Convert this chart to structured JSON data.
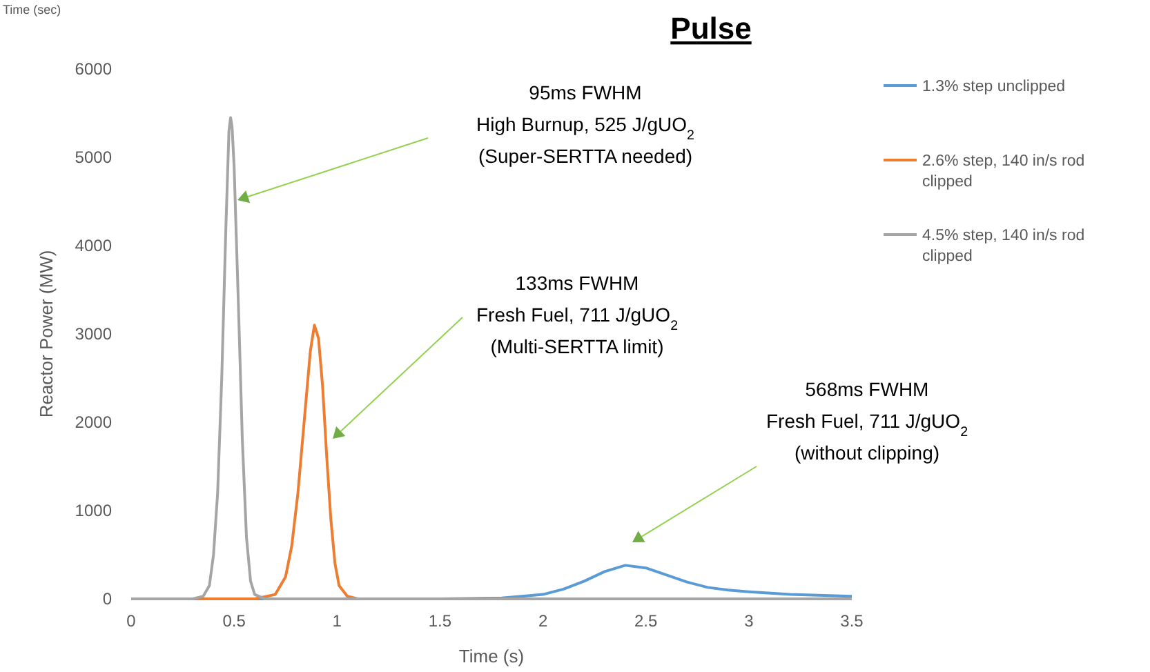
{
  "chart_data": {
    "type": "line",
    "title": "Pulse",
    "xlabel": "Time (s)",
    "ylabel": "Reactor Power (MW)",
    "xlim": [
      0,
      3.5
    ],
    "xticks": [
      0,
      0.5,
      1,
      1.5,
      2,
      2.5,
      3,
      3.5
    ],
    "ylim": [
      0,
      6000
    ],
    "yticks": [
      0,
      1000,
      2000,
      3000,
      4000,
      5000,
      6000
    ],
    "grid": false,
    "legend": "top right",
    "marker": "none",
    "line_style": "solid",
    "series": [
      {
        "name": "1.3% step unclipped",
        "color": "#5b9bd5",
        "x": [
          0,
          1.5,
          1.8,
          2.0,
          2.1,
          2.2,
          2.3,
          2.4,
          2.5,
          2.6,
          2.7,
          2.8,
          2.9,
          3.0,
          3.2,
          3.5
        ],
        "values": [
          0,
          0,
          10,
          50,
          110,
          200,
          310,
          380,
          350,
          270,
          190,
          130,
          100,
          80,
          50,
          30
        ]
      },
      {
        "name": "2.6% step, 140 in/s rod clipped",
        "color": "#ed7d31",
        "x": [
          0,
          0.6,
          0.7,
          0.75,
          0.78,
          0.81,
          0.84,
          0.87,
          0.89,
          0.91,
          0.93,
          0.95,
          0.97,
          0.99,
          1.01,
          1.05,
          1.1,
          3.5
        ],
        "values": [
          0,
          0,
          50,
          250,
          600,
          1200,
          2000,
          2800,
          3100,
          2950,
          2400,
          1600,
          900,
          400,
          150,
          30,
          0,
          0
        ]
      },
      {
        "name": "4.5% step, 140 in/s rod clipped",
        "color": "#a5a5a5",
        "x": [
          0,
          0.3,
          0.35,
          0.38,
          0.4,
          0.42,
          0.44,
          0.46,
          0.475,
          0.483,
          0.49,
          0.5,
          0.52,
          0.54,
          0.56,
          0.58,
          0.6,
          0.65,
          3.5
        ],
        "values": [
          0,
          0,
          30,
          150,
          500,
          1200,
          2500,
          4200,
          5300,
          5450,
          5350,
          4900,
          3400,
          1800,
          700,
          200,
          50,
          0,
          0
        ]
      }
    ],
    "annotations": [
      "95ms FWHM\nHigh Burnup, 525 J/gUO$_{2}$\n(Super-SERTTA needed)",
      "133ms FWHM\nFresh Fuel, 711 J/gUO$_{2}$\n(Multi-SERTTA limit)",
      "568ms FWHM\nFresh Fuel, 711 J/gUO$_{2}$\n(without clipping)",
      "Time (sec)"
    ]
  }
}
